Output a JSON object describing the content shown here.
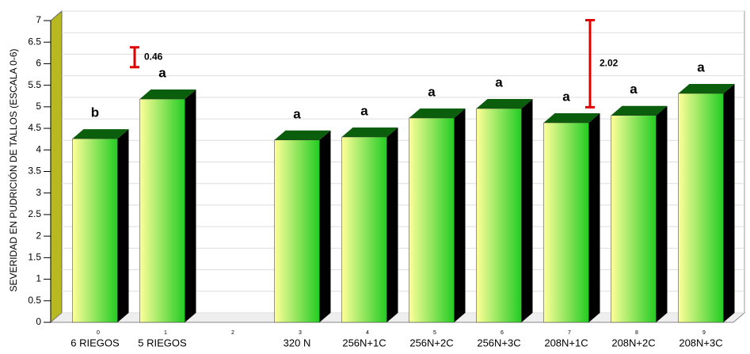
{
  "chart_data": {
    "type": "bar",
    "y_label": "SEVERIDAD EN PUDRICIÓN DE TALLOS (ESCALA 0-6)",
    "categories": [
      "6 RIEGOS",
      "5 RIEGOS",
      null,
      "320 N",
      "256N+1C",
      "256N+2C",
      "256N+3C",
      "208N+1C",
      "208N+2C",
      "208N+3C"
    ],
    "category_indices": [
      0,
      1,
      2,
      3,
      4,
      5,
      6,
      7,
      8,
      9
    ],
    "values": [
      4.26,
      5.18,
      null,
      4.23,
      4.3,
      4.74,
      4.96,
      4.63,
      4.8,
      5.31
    ],
    "annotations": [
      "b",
      "a",
      null,
      "a",
      "a",
      "a",
      "a",
      "a",
      "a",
      "a"
    ],
    "error_bars": [
      {
        "value": 0.46,
        "label": "0.46"
      },
      {
        "value": 2.02,
        "label": "2.02"
      }
    ],
    "ylim": [
      0,
      7
    ],
    "yticks": [
      0,
      0.5,
      1,
      1.5,
      2,
      2.5,
      3,
      3.5,
      4,
      4.5,
      5,
      5.5,
      6,
      6.5,
      7
    ],
    "grid": true,
    "colors": {
      "face_top": "#ffff99",
      "face_bottom": "#22cc22",
      "top": "#0b5e0b",
      "side": "#000000",
      "error": "#e00000"
    }
  }
}
